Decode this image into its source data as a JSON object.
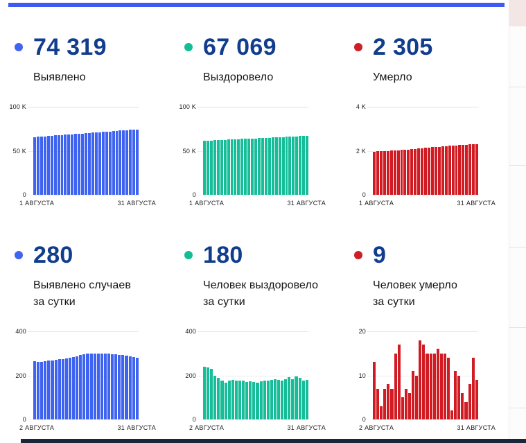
{
  "chrome": {
    "top_rule_color": "#3d5bf0",
    "bottom_bar_color": "#1b2638",
    "side_strip_top_color": "#f2e7e4"
  },
  "cards": [
    {
      "value": "74 319",
      "label": "Выявлено",
      "dot_color": "#4164f0",
      "chart_index": 0
    },
    {
      "value": "67 069",
      "label": "Выздоровело",
      "dot_color": "#14bd96",
      "chart_index": 1
    },
    {
      "value": "2 305",
      "label": "Умерло",
      "dot_color": "#cb2026",
      "chart_index": 2
    },
    {
      "value": "280",
      "label": "Выявлено случаев\nза сутки",
      "dot_color": "#4164f0",
      "chart_index": 3
    },
    {
      "value": "180",
      "label": "Человек выздоровело\nза сутки",
      "dot_color": "#14bd96",
      "chart_index": 4
    },
    {
      "value": "9",
      "label": "Человек умерло\nза сутки",
      "dot_color": "#cb2026",
      "chart_index": 5
    }
  ],
  "chart_data": [
    {
      "type": "bar",
      "title": "Выявлено (всего)",
      "bar_color": "#3e63f0",
      "ylim": [
        0,
        100000
      ],
      "yticks": [
        "100 K",
        "50 K",
        "0"
      ],
      "x_start": "1 АВГУСТА",
      "x_end": "31 АВГУСТА",
      "grid": true,
      "values": [
        65754,
        66018,
        66281,
        66545,
        66812,
        67081,
        67352,
        67625,
        67900,
        68177,
        68456,
        68737,
        69022,
        69314,
        69611,
        69909,
        70209,
        70508,
        70806,
        71104,
        71404,
        71703,
        72000,
        72296,
        72591,
        72884,
        73175,
        73464,
        73751,
        74036,
        74319
      ]
    },
    {
      "type": "bar",
      "title": "Выздоровело (всего)",
      "bar_color": "#16bd98",
      "ylim": [
        0,
        100000
      ],
      "yticks": [
        "100 K",
        "50 K",
        "0"
      ],
      "x_start": "1 АВГУСТА",
      "x_end": "31 АВГУСТА",
      "grid": true,
      "values": [
        61300,
        61492,
        61684,
        61876,
        62068,
        62260,
        62452,
        62644,
        62836,
        63028,
        63220,
        63412,
        63604,
        63796,
        63988,
        64180,
        64372,
        64564,
        64756,
        64948,
        65140,
        65332,
        65524,
        65716,
        65908,
        66100,
        66292,
        66484,
        66676,
        66868,
        67069
      ]
    },
    {
      "type": "bar",
      "title": "Умерло (всего)",
      "bar_color": "#d11b23",
      "ylim": [
        0,
        4000
      ],
      "yticks": [
        "4 K",
        "2 K",
        "0"
      ],
      "x_start": "1 АВГУСТА",
      "x_end": "31 АВГУСТА",
      "grid": true,
      "values": [
        1968,
        1974,
        1980,
        1988,
        1996,
        2005,
        2015,
        2026,
        2038,
        2050,
        2063,
        2076,
        2090,
        2104,
        2118,
        2132,
        2146,
        2160,
        2174,
        2188,
        2201,
        2214,
        2227,
        2239,
        2251,
        2262,
        2272,
        2282,
        2291,
        2299,
        2305
      ]
    },
    {
      "type": "bar",
      "title": "Выявлено случаев за сутки",
      "bar_color": "#3e63f0",
      "ylim": [
        0,
        400
      ],
      "yticks": [
        "400",
        "200",
        "0"
      ],
      "x_start": "2 АВГУСТА",
      "x_end": "31 АВГУСТА",
      "grid": true,
      "values": [
        264,
        263,
        263,
        265,
        267,
        269,
        271,
        273,
        275,
        277,
        279,
        282,
        286,
        292,
        296,
        298,
        300,
        299,
        298,
        298,
        300,
        299,
        297,
        296,
        294,
        292,
        290,
        288,
        285,
        280
      ]
    },
    {
      "type": "bar",
      "title": "Человек выздоровело за сутки",
      "bar_color": "#16bd98",
      "ylim": [
        0,
        400
      ],
      "yticks": [
        "400",
        "200",
        "0"
      ],
      "x_start": "2 АВГУСТА",
      "x_end": "31 АВГУСТА",
      "grid": true,
      "values": [
        240,
        237,
        229,
        198,
        190,
        175,
        168,
        178,
        180,
        176,
        178,
        175,
        170,
        172,
        170,
        168,
        172,
        175,
        178,
        180,
        182,
        180,
        176,
        182,
        192,
        184,
        196,
        190,
        176,
        180
      ]
    },
    {
      "type": "bar",
      "title": "Человек умерло за сутки",
      "bar_color": "#d11b23",
      "ylim": [
        0,
        20
      ],
      "yticks": [
        "20",
        "10",
        "0"
      ],
      "x_start": "2 АВГУСТА",
      "x_end": "31 АВГУСТА",
      "grid": true,
      "values": [
        13,
        7,
        3,
        7,
        8,
        7,
        15,
        17,
        5,
        7,
        6,
        11,
        10,
        18,
        17,
        15,
        15,
        15,
        16,
        15,
        15,
        14,
        2,
        11,
        10,
        6,
        4,
        8,
        14,
        9
      ]
    }
  ]
}
